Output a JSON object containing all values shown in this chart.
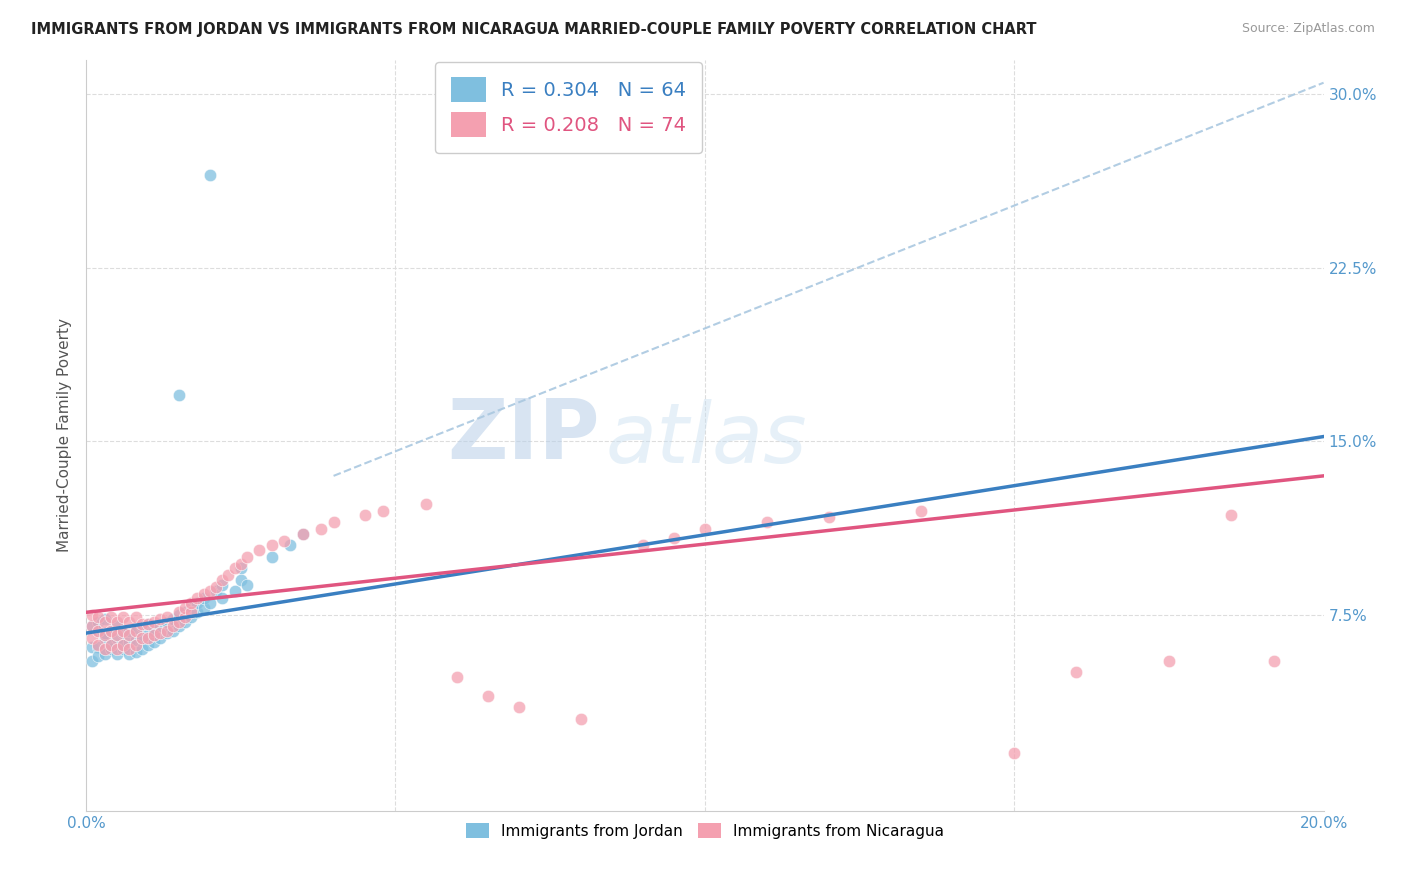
{
  "title": "IMMIGRANTS FROM JORDAN VS IMMIGRANTS FROM NICARAGUA MARRIED-COUPLE FAMILY POVERTY CORRELATION CHART",
  "source": "Source: ZipAtlas.com",
  "ylabel": "Married-Couple Family Poverty",
  "xlim": [
    0.0,
    0.2
  ],
  "ylim": [
    -0.01,
    0.315
  ],
  "xticks": [
    0.0,
    0.05,
    0.1,
    0.15,
    0.2
  ],
  "xtick_labels": [
    "0.0%",
    "",
    "",
    "",
    "20.0%"
  ],
  "ytick_labels": [
    "7.5%",
    "15.0%",
    "22.5%",
    "30.0%"
  ],
  "yticks": [
    0.075,
    0.15,
    0.225,
    0.3
  ],
  "jordan_color": "#7fbfdf",
  "nicaragua_color": "#f4a0b0",
  "jordan_R": 0.304,
  "jordan_N": 64,
  "nicaragua_R": 0.208,
  "nicaragua_N": 74,
  "watermark_zip": "ZIP",
  "watermark_atlas": "atlas",
  "jordan_line_color": "#3a7fc1",
  "nicaragua_line_color": "#e05580",
  "dashed_line_color": "#aac8e0",
  "background_color": "#ffffff",
  "jordan_line_x": [
    0.0,
    0.2
  ],
  "jordan_line_y": [
    0.067,
    0.152
  ],
  "nicaragua_line_x": [
    0.0,
    0.2
  ],
  "nicaragua_line_y": [
    0.076,
    0.135
  ],
  "dashed_line_x": [
    0.04,
    0.2
  ],
  "dashed_line_y": [
    0.135,
    0.305
  ],
  "jordan_scatter_x": [
    0.001,
    0.001,
    0.001,
    0.002,
    0.002,
    0.002,
    0.002,
    0.003,
    0.003,
    0.003,
    0.003,
    0.003,
    0.004,
    0.004,
    0.004,
    0.005,
    0.005,
    0.005,
    0.006,
    0.006,
    0.006,
    0.007,
    0.007,
    0.007,
    0.008,
    0.008,
    0.008,
    0.009,
    0.009,
    0.009,
    0.01,
    0.01,
    0.01,
    0.011,
    0.011,
    0.012,
    0.012,
    0.013,
    0.013,
    0.014,
    0.014,
    0.015,
    0.015,
    0.016,
    0.016,
    0.017,
    0.017,
    0.018,
    0.018,
    0.019,
    0.019,
    0.02,
    0.021,
    0.022,
    0.022,
    0.024,
    0.025,
    0.025,
    0.026,
    0.03,
    0.033,
    0.035,
    0.015,
    0.02
  ],
  "jordan_scatter_y": [
    0.061,
    0.055,
    0.07,
    0.061,
    0.057,
    0.068,
    0.072,
    0.06,
    0.058,
    0.065,
    0.067,
    0.073,
    0.06,
    0.062,
    0.068,
    0.058,
    0.065,
    0.07,
    0.06,
    0.062,
    0.067,
    0.058,
    0.063,
    0.068,
    0.059,
    0.064,
    0.069,
    0.06,
    0.065,
    0.07,
    0.062,
    0.066,
    0.071,
    0.063,
    0.068,
    0.065,
    0.07,
    0.067,
    0.072,
    0.068,
    0.073,
    0.07,
    0.075,
    0.072,
    0.076,
    0.074,
    0.078,
    0.076,
    0.08,
    0.078,
    0.082,
    0.08,
    0.085,
    0.082,
    0.088,
    0.085,
    0.09,
    0.095,
    0.088,
    0.1,
    0.105,
    0.11,
    0.17,
    0.265
  ],
  "nicaragua_scatter_x": [
    0.001,
    0.001,
    0.001,
    0.002,
    0.002,
    0.002,
    0.003,
    0.003,
    0.003,
    0.004,
    0.004,
    0.004,
    0.005,
    0.005,
    0.005,
    0.006,
    0.006,
    0.006,
    0.007,
    0.007,
    0.007,
    0.008,
    0.008,
    0.008,
    0.009,
    0.009,
    0.01,
    0.01,
    0.011,
    0.011,
    0.012,
    0.012,
    0.013,
    0.013,
    0.014,
    0.015,
    0.015,
    0.016,
    0.016,
    0.017,
    0.017,
    0.018,
    0.019,
    0.02,
    0.021,
    0.022,
    0.023,
    0.024,
    0.025,
    0.026,
    0.028,
    0.03,
    0.032,
    0.035,
    0.038,
    0.04,
    0.045,
    0.048,
    0.055,
    0.06,
    0.065,
    0.07,
    0.08,
    0.09,
    0.095,
    0.1,
    0.11,
    0.12,
    0.135,
    0.15,
    0.16,
    0.175,
    0.185,
    0.192
  ],
  "nicaragua_scatter_y": [
    0.065,
    0.07,
    0.075,
    0.062,
    0.068,
    0.074,
    0.06,
    0.066,
    0.072,
    0.062,
    0.068,
    0.074,
    0.06,
    0.066,
    0.072,
    0.062,
    0.068,
    0.074,
    0.06,
    0.066,
    0.072,
    0.062,
    0.068,
    0.074,
    0.065,
    0.071,
    0.065,
    0.071,
    0.066,
    0.072,
    0.067,
    0.073,
    0.068,
    0.074,
    0.07,
    0.072,
    0.076,
    0.074,
    0.078,
    0.076,
    0.08,
    0.082,
    0.084,
    0.085,
    0.087,
    0.09,
    0.092,
    0.095,
    0.097,
    0.1,
    0.103,
    0.105,
    0.107,
    0.11,
    0.112,
    0.115,
    0.118,
    0.12,
    0.123,
    0.048,
    0.04,
    0.035,
    0.03,
    0.105,
    0.108,
    0.112,
    0.115,
    0.117,
    0.12,
    0.015,
    0.05,
    0.055,
    0.118,
    0.055
  ]
}
